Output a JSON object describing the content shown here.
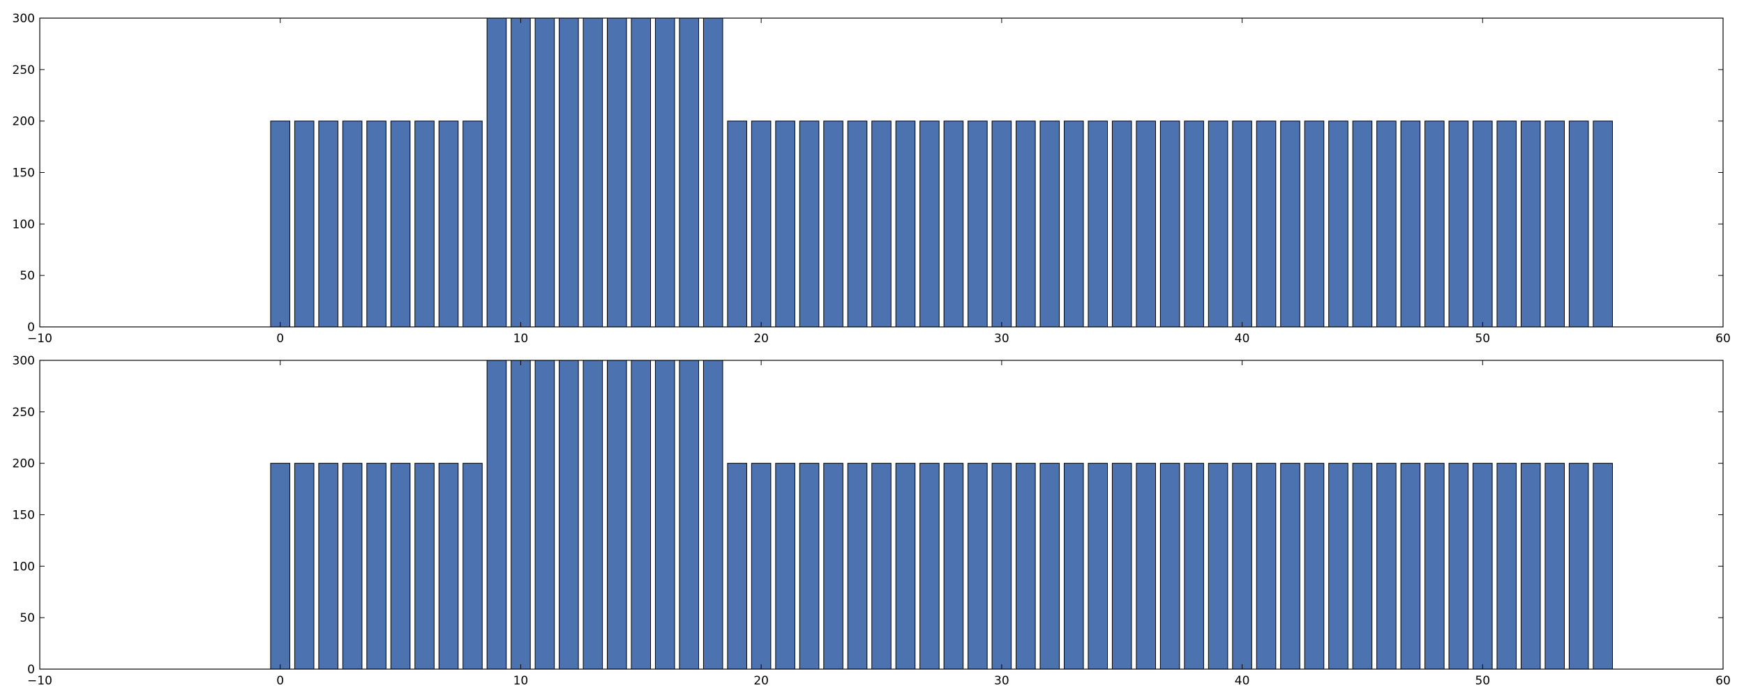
{
  "colors": {
    "bar_fill": "#4c72b0",
    "bar_edge": "#000000",
    "axes": "#000000",
    "background": "#ffffff"
  },
  "chart_data": [
    {
      "type": "bar",
      "title": "",
      "xlabel": "",
      "ylabel": "",
      "xlim": [
        -10,
        60
      ],
      "ylim": [
        0,
        300
      ],
      "grid": false,
      "bar_width": 0.8,
      "x_ticks": [
        -10,
        0,
        10,
        20,
        30,
        40,
        50,
        60
      ],
      "x_tick_labels": [
        "−10",
        "0",
        "10",
        "20",
        "30",
        "40",
        "50",
        "60"
      ],
      "y_ticks": [
        0,
        50,
        100,
        150,
        200,
        250,
        300
      ],
      "y_tick_labels": [
        "0",
        "50",
        "100",
        "150",
        "200",
        "250",
        "300"
      ],
      "x": [
        0,
        1,
        2,
        3,
        4,
        5,
        6,
        7,
        8,
        9,
        10,
        11,
        12,
        13,
        14,
        15,
        16,
        17,
        18,
        19,
        20,
        21,
        22,
        23,
        24,
        25,
        26,
        27,
        28,
        29,
        30,
        31,
        32,
        33,
        34,
        35,
        36,
        37,
        38,
        39,
        40,
        41,
        42,
        43,
        44,
        45,
        46,
        47,
        48,
        49,
        50,
        51,
        52,
        53,
        54,
        55
      ],
      "values": [
        200,
        200,
        200,
        200,
        200,
        200,
        200,
        200,
        200,
        300,
        300,
        300,
        300,
        300,
        300,
        300,
        300,
        300,
        300,
        200,
        200,
        200,
        200,
        200,
        200,
        200,
        200,
        200,
        200,
        200,
        200,
        200,
        200,
        200,
        200,
        200,
        200,
        200,
        200,
        200,
        200,
        200,
        200,
        200,
        200,
        200,
        200,
        200,
        200,
        200,
        200,
        200,
        200,
        200,
        200,
        200
      ]
    },
    {
      "type": "bar",
      "title": "",
      "xlabel": "",
      "ylabel": "",
      "xlim": [
        -10,
        60
      ],
      "ylim": [
        0,
        300
      ],
      "grid": false,
      "bar_width": 0.8,
      "x_ticks": [
        -10,
        0,
        10,
        20,
        30,
        40,
        50,
        60
      ],
      "x_tick_labels": [
        "−10",
        "0",
        "10",
        "20",
        "30",
        "40",
        "50",
        "60"
      ],
      "y_ticks": [
        0,
        50,
        100,
        150,
        200,
        250,
        300
      ],
      "y_tick_labels": [
        "0",
        "50",
        "100",
        "150",
        "200",
        "250",
        "300"
      ],
      "x": [
        0,
        1,
        2,
        3,
        4,
        5,
        6,
        7,
        8,
        9,
        10,
        11,
        12,
        13,
        14,
        15,
        16,
        17,
        18,
        19,
        20,
        21,
        22,
        23,
        24,
        25,
        26,
        27,
        28,
        29,
        30,
        31,
        32,
        33,
        34,
        35,
        36,
        37,
        38,
        39,
        40,
        41,
        42,
        43,
        44,
        45,
        46,
        47,
        48,
        49,
        50,
        51,
        52,
        53,
        54,
        55
      ],
      "values": [
        200,
        200,
        200,
        200,
        200,
        200,
        200,
        200,
        200,
        300,
        300,
        300,
        300,
        300,
        300,
        300,
        300,
        300,
        300,
        200,
        200,
        200,
        200,
        200,
        200,
        200,
        200,
        200,
        200,
        200,
        200,
        200,
        200,
        200,
        200,
        200,
        200,
        200,
        200,
        200,
        200,
        200,
        200,
        200,
        200,
        200,
        200,
        200,
        200,
        200,
        200,
        200,
        200,
        200,
        200,
        200
      ]
    }
  ]
}
